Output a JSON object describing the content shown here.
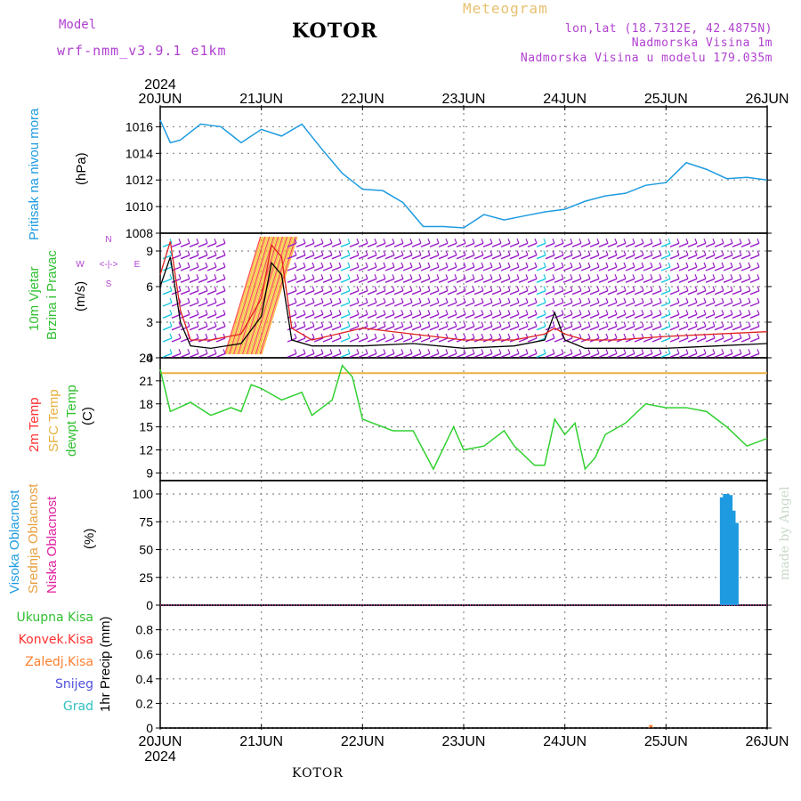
{
  "header": {
    "model_label": "Model",
    "model_version": "wrf-nmm_v3.9.1 e1km",
    "station_title": "KOTOR",
    "meteogram_label": "Meteogram",
    "lonlat": "lon,lat (18.7312E, 42.4875N)",
    "altitude": "Nadmorska Visina 1m",
    "model_altitude": "Nadmorska Visina u modelu 179.035m",
    "year_top": "2024"
  },
  "footer": {
    "station": "KOTOR",
    "year_bottom": "2024",
    "credit": "made by Angel"
  },
  "x_axis": {
    "ticks": [
      "20JUN",
      "21JUN",
      "22JUN",
      "23JUN",
      "24JUN",
      "25JUN",
      "26JUN"
    ]
  },
  "panel_labels": {
    "pressure": [
      "Pritisak na nivou mora",
      "(hPa)"
    ],
    "wind": [
      "10m Vjetar",
      "Brzina i Pravac",
      "(m/s)"
    ],
    "wind_compass": [
      "N",
      "S",
      "W",
      "E",
      "<-|->"
    ],
    "temp": [
      "2m Temp",
      "SFC Temp",
      "dewpt Temp",
      "(C)"
    ],
    "cloud": [
      "Visoka Oblacnost",
      "Srednja Oblacnost",
      "Niska Oblacnost",
      "(%)"
    ],
    "precip": [
      "Ukupna Kisa",
      "Konvek.Kisa",
      "Zaledj.Kisa",
      "Snijeg",
      "Grad",
      "1hr Precip (mm)"
    ]
  },
  "colors": {
    "pressure": "#1e9be0",
    "wind_purple": "#9a1ec8",
    "wind_cyan": "#18c8e0",
    "wind_orange": "#ff9a20",
    "wind_speed": "#000000",
    "wind_gust": "#e02020",
    "temp_2m": "#ff3030",
    "temp_sfc": "#e8b040",
    "dewpt": "#30d030",
    "cloud_high": "#1e9be0",
    "cloud_mid": "#e8a040",
    "cloud_low": "#e020a0",
    "precip_total": "#30c030",
    "precip_conv": "#ff3030",
    "precip_frozen": "#ff8030",
    "snow": "#5050e0",
    "hail": "#30c0c0"
  },
  "chart_data": [
    {
      "type": "line",
      "title": "",
      "ylabel": "(hPa)",
      "ylim": [
        1008,
        1017.5
      ],
      "yticks": [
        1008,
        1010,
        1012,
        1014,
        1016
      ],
      "x": [
        0,
        0.1,
        0.2,
        0.4,
        0.6,
        0.8,
        1.0,
        1.2,
        1.4,
        1.6,
        1.8,
        2.0,
        2.2,
        2.4,
        2.6,
        2.8,
        3.0,
        3.2,
        3.4,
        3.6,
        3.8,
        4.0,
        4.2,
        4.4,
        4.6,
        4.8,
        5.0,
        5.2,
        5.4,
        5.6,
        5.8,
        6.0
      ],
      "series": [
        {
          "values": [
            1016.5,
            1014.8,
            1015.0,
            1016.2,
            1016.0,
            1014.8,
            1015.8,
            1015.3,
            1016.2,
            1014.3,
            1012.5,
            1011.3,
            1011.2,
            1010.3,
            1008.5,
            1008.5,
            1008.4,
            1009.4,
            1009.0,
            1009.3,
            1009.6,
            1009.8,
            1010.4,
            1010.8,
            1011.0,
            1011.6,
            1011.8,
            1013.3,
            1012.8,
            1012.1,
            1012.2,
            1012.0
          ]
        }
      ]
    },
    {
      "type": "line",
      "title": "",
      "ylabel": "(m/s)",
      "ylim": [
        0,
        10.5
      ],
      "yticks": [
        0,
        3,
        6,
        9
      ],
      "x": [
        0,
        0.1,
        0.2,
        0.3,
        0.5,
        0.8,
        1.0,
        1.1,
        1.2,
        1.3,
        1.5,
        2.0,
        2.5,
        3.0,
        3.5,
        3.8,
        3.9,
        4.0,
        4.2,
        4.5,
        5.0,
        5.5,
        6.0
      ],
      "series": [
        {
          "name": "speed",
          "values": [
            6.0,
            8.5,
            3.0,
            1.0,
            0.8,
            1.2,
            3.5,
            8.0,
            7.0,
            1.5,
            1.0,
            1.0,
            1.2,
            0.8,
            1.0,
            1.5,
            3.8,
            1.5,
            0.8,
            0.8,
            0.8,
            1.0,
            1.2
          ]
        },
        {
          "name": "gust",
          "values": [
            7.0,
            9.8,
            4.0,
            1.5,
            1.5,
            2.0,
            5.0,
            9.5,
            8.5,
            2.5,
            1.5,
            2.5,
            2.0,
            1.5,
            1.5,
            2.0,
            2.5,
            2.0,
            1.5,
            1.5,
            1.8,
            2.0,
            2.2
          ]
        }
      ]
    },
    {
      "type": "line",
      "title": "",
      "ylabel": "(C)",
      "ylim": [
        8,
        24
      ],
      "yticks": [
        9,
        12,
        15,
        18,
        21,
        24
      ],
      "sfc_temp": 22,
      "x": [
        0,
        0.1,
        0.3,
        0.5,
        0.7,
        0.8,
        0.9,
        1.0,
        1.2,
        1.4,
        1.5,
        1.7,
        1.8,
        1.9,
        2.0,
        2.1,
        2.3,
        2.5,
        2.7,
        2.9,
        3.0,
        3.2,
        3.4,
        3.5,
        3.7,
        3.8,
        3.9,
        4.0,
        4.1,
        4.2,
        4.3,
        4.4,
        4.6,
        4.8,
        5.0,
        5.2,
        5.4,
        5.6,
        5.8,
        6.0
      ],
      "series": [
        {
          "name": "dewpt",
          "values": [
            22.5,
            17.0,
            18.2,
            16.5,
            17.5,
            17.0,
            20.5,
            20.0,
            18.5,
            19.5,
            16.5,
            18.5,
            23.0,
            21.5,
            16.0,
            15.5,
            14.5,
            14.5,
            9.5,
            15.0,
            12.0,
            12.5,
            14.5,
            12.5,
            10.0,
            10.0,
            16.0,
            14.0,
            15.5,
            9.5,
            11.0,
            14.0,
            15.5,
            18.0,
            17.5,
            17.5,
            17.0,
            15.0,
            12.5,
            13.5
          ]
        }
      ]
    },
    {
      "type": "bar",
      "title": "",
      "ylabel": "(%)",
      "ylim": [
        0,
        112
      ],
      "yticks": [
        0,
        25,
        50,
        75,
        100
      ],
      "x": [
        5.55,
        5.58,
        5.61,
        5.64,
        5.67,
        5.7
      ],
      "series": [
        {
          "name": "Visoka Oblacnost",
          "values": [
            97,
            100,
            100,
            99,
            85,
            74
          ]
        }
      ]
    },
    {
      "type": "bar",
      "title": "",
      "ylabel": "1hr Precip (mm)",
      "ylim": [
        0,
        1.0
      ],
      "yticks": [
        0,
        0.2,
        0.4,
        0.6,
        0.8
      ],
      "x": [
        4.85
      ],
      "series": [
        {
          "name": "Zaledj.Kisa",
          "values": [
            0.01
          ]
        }
      ]
    }
  ]
}
